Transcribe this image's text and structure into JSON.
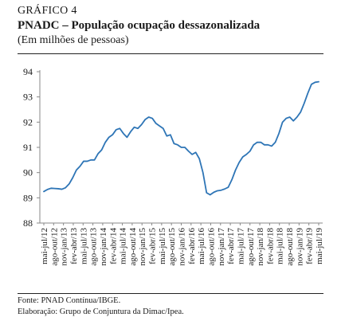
{
  "header": {
    "figure_label": "GRÁFICO 4",
    "title": "PNADC – População ocupação dessazonalizada",
    "subtitle": "(Em milhões de pessoas)"
  },
  "footer": {
    "source": "Fonte: PNAD Contínua/IBGE.",
    "elaboration": "Elaboração: Grupo de Conjuntura da Dimac/Ipea."
  },
  "chart_data": {
    "type": "line",
    "title": "PNADC – População ocupação dessazonalizada",
    "ylabel": "",
    "xlabel": "",
    "ylim": [
      88,
      94
    ],
    "yticks": [
      88,
      89,
      90,
      91,
      92,
      93,
      94
    ],
    "grid": false,
    "legend": "none",
    "line_color": "#2e75b6",
    "x_tick_labels": [
      "mai-jul/12",
      "ago-out/12",
      "nov-jan/13",
      "fev-abr/13",
      "mai-jul/13",
      "ago-out/13",
      "nov-jan/14",
      "fev-abr/14",
      "mai-jul/14",
      "ago-out/14",
      "nov-jan/15",
      "fev-abr/15",
      "mai-jul/15",
      "ago-out/15",
      "nov-jan/16",
      "fev-abr/16",
      "mai-jul/16",
      "ago-out/16",
      "nov-jan/17",
      "fev-abr/17",
      "mai-jul/17",
      "ago-out/17",
      "nov-jan/18",
      "fev-abr/18",
      "mai-jul/18",
      "ago-out/18",
      "nov-jan/19",
      "fev-abr/19",
      "mai-jul/19"
    ],
    "series": [
      {
        "values": [
          89.25,
          89.33,
          89.38,
          89.37,
          89.36,
          89.34,
          89.4,
          89.55,
          89.8,
          90.1,
          90.25,
          90.45,
          90.45,
          90.5,
          90.5,
          90.75,
          90.9,
          91.2,
          91.4,
          91.5,
          91.7,
          91.75,
          91.55,
          91.4,
          91.62,
          91.8,
          91.75,
          91.9,
          92.1,
          92.2,
          92.15,
          91.95,
          91.85,
          91.75,
          91.45,
          91.5,
          91.15,
          91.1,
          91.0,
          91.0,
          90.85,
          90.72,
          90.8,
          90.55,
          90.0,
          89.2,
          89.12,
          89.22,
          89.28,
          89.3,
          89.35,
          89.42,
          89.72,
          90.1,
          90.4,
          90.62,
          90.72,
          90.85,
          91.1,
          91.2,
          91.2,
          91.1,
          91.1,
          91.05,
          91.2,
          91.55,
          92.0,
          92.15,
          92.2,
          92.05,
          92.2,
          92.4,
          92.75,
          93.15,
          93.5,
          93.58,
          93.6
        ]
      }
    ]
  }
}
